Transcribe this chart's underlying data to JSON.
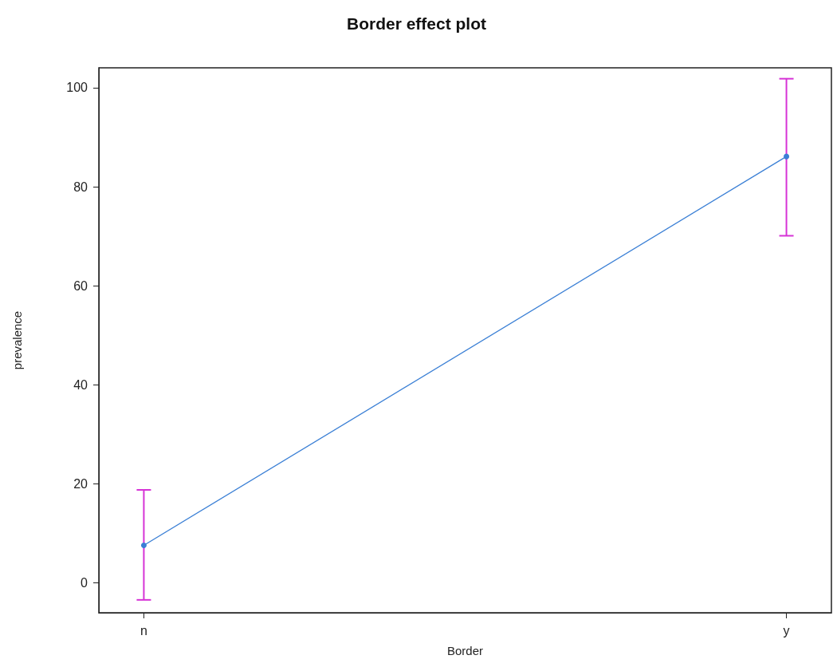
{
  "chart_data": {
    "type": "line",
    "title": "Border effect plot",
    "xlabel": "Border",
    "ylabel": "prevalence",
    "categories": [
      "n",
      "y"
    ],
    "series": [
      {
        "color": "#3a7fd5",
        "values": [
          7.6,
          86.1
        ],
        "errors": [
          [
            -3.4,
            18.8
          ],
          [
            70.1,
            101.8
          ]
        ]
      }
    ],
    "ylim": [
      -6,
      104
    ],
    "yticks": [
      0,
      20,
      40,
      60,
      80,
      100
    ],
    "marker": "circle",
    "line_style": "solid"
  }
}
